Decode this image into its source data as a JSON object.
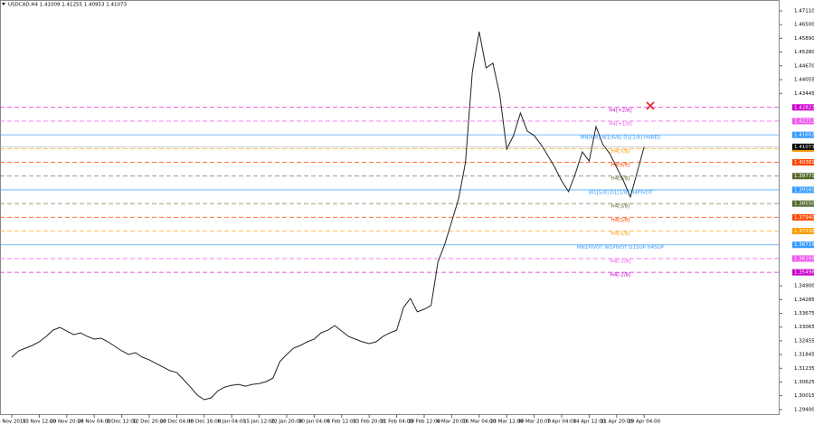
{
  "chart_data": {
    "type": "line",
    "header": "USDCAD,H4  1.41009 1.41255 1.40953 1.41073",
    "color": "#222222",
    "categories": [
      "6 Nov 2019",
      null,
      null,
      null,
      "13 Nov 12:00",
      null,
      null,
      null,
      "20 Nov 20:00",
      null,
      null,
      null,
      "28 Nov 04:00",
      null,
      null,
      null,
      "5 Dec 12:00",
      null,
      null,
      null,
      "12 Dec 20:00",
      null,
      null,
      null,
      "20 Dec 04:00",
      null,
      null,
      null,
      "30 Dec 16:00",
      null,
      null,
      null,
      "8 Jan 04:00",
      null,
      null,
      null,
      "15 Jan 12:00",
      null,
      null,
      null,
      "22 Jan 20:00",
      null,
      null,
      null,
      "30 Jan 04:00",
      null,
      null,
      null,
      "6 Feb 12:00",
      null,
      null,
      null,
      "13 Feb 20:00",
      null,
      null,
      null,
      "21 Feb 04:00",
      null,
      null,
      null,
      "28 Feb 12:00",
      null,
      null,
      null,
      "6 Mar 20:00",
      null,
      null,
      null,
      "16 Mar 04:00",
      null,
      null,
      null,
      "23 Mar 12:00",
      null,
      null,
      null,
      "30 Mar 20:00",
      null,
      null,
      null,
      "7 Apr 04:00",
      null,
      null,
      null,
      "14 Apr 12:00",
      null,
      null,
      null,
      "21 Apr 20:00",
      null,
      null,
      null,
      "29 Apr 04:00"
    ],
    "values": [
      1.3173,
      1.3201,
      1.3213,
      1.3225,
      1.3241,
      1.3265,
      1.3293,
      1.3305,
      1.3289,
      1.3273,
      1.3281,
      1.3265,
      1.3253,
      1.3257,
      1.3241,
      1.3221,
      1.3201,
      1.3185,
      1.3193,
      1.3173,
      1.3161,
      1.3145,
      1.3129,
      1.3113,
      1.3105,
      1.3073,
      1.304,
      1.3004,
      1.2984,
      1.2992,
      1.3024,
      1.304,
      1.3048,
      1.3052,
      1.3044,
      1.3052,
      1.3056,
      1.3064,
      1.308,
      1.3153,
      1.3185,
      1.3213,
      1.3225,
      1.3241,
      1.3253,
      1.3281,
      1.3293,
      1.3313,
      1.3289,
      1.3265,
      1.3253,
      1.3241,
      1.3233,
      1.3241,
      1.3265,
      1.3281,
      1.3293,
      1.3394,
      1.3434,
      1.3374,
      1.3386,
      1.3402,
      1.3595,
      1.3675,
      1.3775,
      1.3876,
      1.4036,
      1.4438,
      1.4619,
      1.4458,
      1.4478,
      1.4338,
      1.4097,
      1.4157,
      1.4257,
      1.4177,
      1.4157,
      1.4117,
      1.4068,
      1.4016,
      1.3956,
      1.3908,
      1.3988,
      1.4085,
      1.4044,
      1.4197,
      1.4117,
      1.4077,
      1.4016,
      1.3956,
      1.3884,
      1.3996,
      1.4107
    ],
    "ylim": [
      1.29118,
      1.47592
    ],
    "yticks": [
      {
        "value": 1.4711,
        "label": "1.47110"
      },
      {
        "value": 1.465,
        "label": "1.46500"
      },
      {
        "value": 1.4589,
        "label": "1.45890"
      },
      {
        "value": 1.4528,
        "label": "1.45280"
      },
      {
        "value": 1.4467,
        "label": "1.44670"
      },
      1.44055,
      1.43445,
      {
        "value": 1.349,
        "label": "1.34900"
      },
      1.34285,
      1.33675,
      1.33065,
      1.32455,
      1.31845,
      1.31235,
      1.30625,
      1.30015,
      {
        "value": 1.294,
        "label": "1.29400"
      }
    ],
    "last_price": 1.41073,
    "levels": [
      {
        "name": "H4[+2/8]",
        "value": 1.42822,
        "color": "#cc00cc",
        "dash": true
      },
      {
        "name": "H4[+1/8]",
        "value": 1.42212,
        "color": "#ee55ee",
        "dash": true
      },
      {
        "name": "MN[6/8] W1[6/8] D1[2/8] H4RES",
        "value": 1.41602,
        "color": "#3399ff",
        "dash": false
      },
      {
        "name": "H4[7/8]",
        "value": 1.40991,
        "color": "#ff9900",
        "dash": true
      },
      {
        "name": "H4[6/8]",
        "value": 1.40381,
        "color": "#ff4500",
        "dash": true
      },
      {
        "name": "H4[5/8]",
        "value": 1.39771,
        "color": "#556b2f",
        "dash": true
      },
      {
        "name": "W1[5/8] D1[1/8] H4PIVOT",
        "value": 1.3916,
        "value_label": "1.39160",
        "color": "#3399ff",
        "dash": false
      },
      {
        "name": "H4[3/8]",
        "value": 1.3855,
        "value_label": "1.38550",
        "color": "#556b2f",
        "dash": true
      },
      {
        "name": "H4[2/8]",
        "value": 1.3794,
        "value_label": "1.37940",
        "color": "#ff4500",
        "dash": true
      },
      {
        "name": "H4[1/8]",
        "value": 1.3733,
        "value_label": "1.37330",
        "color": "#ff9900",
        "dash": true
      },
      {
        "name": "MN1PIVOT W1PIVOT D1SUP H4SUP",
        "value": 1.36719,
        "color": "#3399ff",
        "dash": false
      },
      {
        "name": "H4[-1/8]",
        "value": 1.36109,
        "color": "#ee55ee",
        "dash": true
      },
      {
        "name": "H4[-2/8]",
        "value": 1.35498,
        "color": "#cc00cc",
        "dash": true
      }
    ]
  }
}
